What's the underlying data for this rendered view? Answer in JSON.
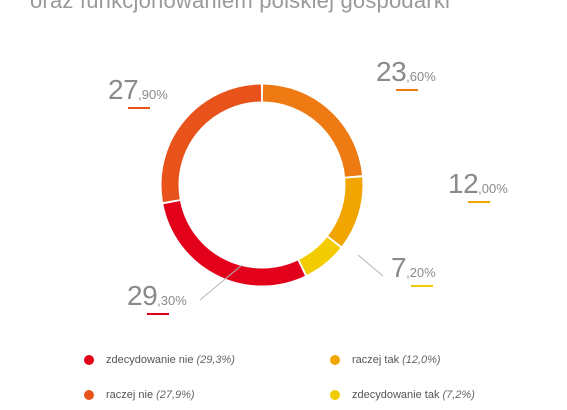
{
  "title": "oraz funkcjonowaniem polskiej gospodarki",
  "chart_data": {
    "type": "pie",
    "subtype": "donut",
    "slices": [
      {
        "name": "zdecydowanie nie",
        "value": 29.3,
        "label_int": "29",
        "label_dec": ",30%",
        "legend_pct": "(29,3%)",
        "color": "#e2001a"
      },
      {
        "name": "raczej nie",
        "value": 27.9,
        "label_int": "27",
        "label_dec": ",90%",
        "legend_pct": "(27,9%)",
        "color": "#e8531c"
      },
      {
        "name": "raczej tak",
        "value": 23.6,
        "label_int": "23",
        "label_dec": ",60%",
        "legend_pct": "",
        "color": "#ee7a14"
      },
      {
        "name": "raczej tak",
        "value": 12.0,
        "label_int": "12",
        "label_dec": ",00%",
        "legend_pct": "(12,0%)",
        "color": "#f0a500"
      },
      {
        "name": "zdecydowanie tak",
        "value": 7.2,
        "label_int": "7",
        "label_dec": ",20%",
        "legend_pct": "(7,2%)",
        "color": "#f2cc00"
      }
    ],
    "legend": [
      {
        "name": "zdecydowanie nie",
        "pct": "(29,3%)",
        "color": "#e2001a"
      },
      {
        "name": "raczej nie",
        "pct": "(27,9%)",
        "color": "#e8531c"
      },
      {
        "name": "raczej tak",
        "pct": "(12,0%)",
        "color": "#f0a500"
      },
      {
        "name": "zdecydowanie tak",
        "pct": "(7,2%)",
        "color": "#f2cc00"
      }
    ],
    "legend_placement": "bottom"
  }
}
